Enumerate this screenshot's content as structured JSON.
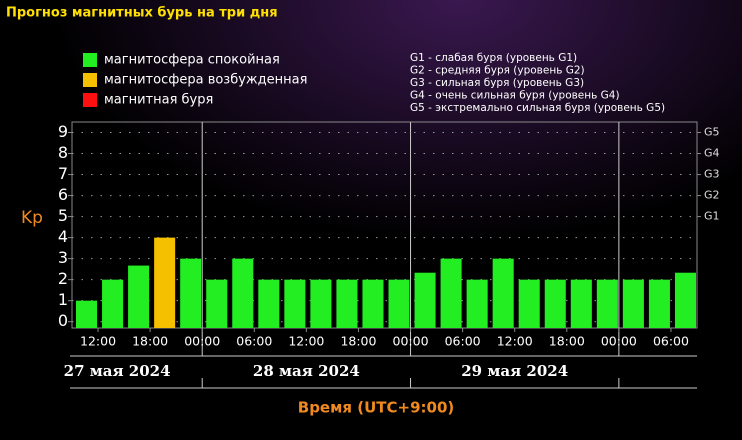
{
  "chart_data": {
    "type": "bar",
    "title": "Прогноз магнитных бурь на три дня",
    "legend": [
      {
        "name": "магнитосфера спокойная",
        "color": "#22ee22"
      },
      {
        "name": "магнитосфера возбужденная",
        "color": "#f5c000"
      },
      {
        "name": "магнитная буря",
        "color": "#ff1010"
      }
    ],
    "storm_levels": [
      {
        "value": 5,
        "label": "G1",
        "text": "G1 - слабая буря (уровень G1)"
      },
      {
        "value": 6,
        "label": "G2",
        "text": "G2 - средняя буря (уровень G2)"
      },
      {
        "value": 7,
        "label": "G3",
        "text": "G3 - сильная буря (уровень G3)"
      },
      {
        "value": 8,
        "label": "G4",
        "text": "G4 - очень сильная буря (уровень G4)"
      },
      {
        "value": 9,
        "label": "G5",
        "text": "G5 - экстремально сильная буря (уровень G5)"
      }
    ],
    "y_label": "Kp",
    "x_label": "Время (UTC+9:00)",
    "values": [
      1,
      2,
      2.67,
      4,
      3,
      2,
      3,
      2,
      2,
      2,
      2,
      2,
      2,
      2.33,
      3,
      2,
      3,
      2,
      2,
      2,
      2,
      2,
      2,
      2.33
    ],
    "colors": [
      "#22ee22",
      "#22ee22",
      "#22ee22",
      "#f5c000",
      "#22ee22",
      "#22ee22",
      "#22ee22",
      "#22ee22",
      "#22ee22",
      "#22ee22",
      "#22ee22",
      "#22ee22",
      "#22ee22",
      "#22ee22",
      "#22ee22",
      "#22ee22",
      "#22ee22",
      "#22ee22",
      "#22ee22",
      "#22ee22",
      "#22ee22",
      "#22ee22",
      "#22ee22",
      "#22ee22"
    ],
    "bar_hours": 3,
    "xlim": [
      0,
      72
    ],
    "xticks": [
      {
        "value": 3,
        "label": "12:00"
      },
      {
        "value": 9,
        "label": "18:00"
      },
      {
        "value": 15,
        "label": "00:00"
      },
      {
        "value": 21,
        "label": "06:00"
      },
      {
        "value": 27,
        "label": "12:00"
      },
      {
        "value": 33,
        "label": "18:00"
      },
      {
        "value": 39,
        "label": "00:00"
      },
      {
        "value": 45,
        "label": "06:00"
      },
      {
        "value": 51,
        "label": "12:00"
      },
      {
        "value": 57,
        "label": "18:00"
      },
      {
        "value": 63,
        "label": "00:00"
      },
      {
        "value": 69,
        "label": "06:00"
      }
    ],
    "days": [
      {
        "label": "27 мая 2024",
        "start": 0,
        "end": 15
      },
      {
        "label": "28 мая 2024",
        "start": 15,
        "end": 39
      },
      {
        "label": "29 мая 2024",
        "start": 39,
        "end": 63
      }
    ],
    "ylim": [
      -0.3,
      9.5
    ],
    "yticks": [
      0,
      1,
      2,
      3,
      4,
      5,
      6,
      7,
      8,
      9
    ],
    "grid": true
  }
}
